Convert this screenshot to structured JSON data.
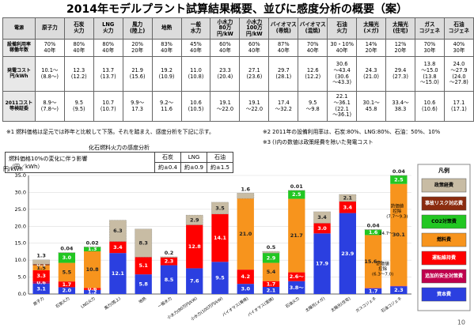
{
  "title": "2014年モデルプラント試算結果概要、並びに感度分析の概要（案）",
  "page_number": "10",
  "table": {
    "header": [
      "電源",
      "原子力",
      "石炭\n火力",
      "LNG\n火力",
      "風力\n(陸上)",
      "地熱",
      "一般\n水力",
      "小水力\n80万円/kW",
      "小水力\n100万円/kW",
      "バイオマス\n(専焼)",
      "バイオマス\n(混焼)",
      "石油\n火力",
      "太陽光\n(メガ)",
      "太陽光\n(住宅)",
      "ガス\nコジェネ",
      "石油\nコジェネ"
    ],
    "rows": [
      [
        "設備利用率\n稼働年数",
        "70%\n40年",
        "80%\n40年",
        "80%\n40年",
        "20%\n20年",
        "83%\n40年",
        "45%\n40年",
        "60%\n40年",
        "60%\n40年",
        "87%\n40年",
        "70%\n40年",
        "30・10%\n40年",
        "14%\n20年",
        "12%\n20年",
        "70%\n30年",
        "40%\n30年"
      ],
      [
        "発電コスト\n円/kWh",
        "10.1〜\n(8.8〜)",
        "12.3\n(12.2)",
        "13.7\n(13.7)",
        "21.9\n(15.6)",
        "19.2\n(10.9)",
        "11.0\n(10.8)",
        "23.3\n(20.4)",
        "27.1\n(23.6)",
        "29.7\n(28.1)",
        "12.6\n(12.2)",
        "30.6\n〜43.4\n(30.6\n〜43.3)",
        "24.3\n(21.0)",
        "29.4\n(27.3)",
        "13.8\n〜15.0\n(13.8\n〜15.0)",
        "24.0\n〜27.9\n(24.0\n〜27.8)"
      ],
      [
        "2011コスト\n等検証委",
        "8.9〜\n(7.8〜)",
        "9.5\n(9.5)",
        "10.7\n(10.7)",
        "9.9〜\n17.3",
        "9.2〜\n11.6",
        "10.6\n(10.5)",
        "19.1\n〜22.0",
        "19.1\n〜22.0",
        "17.4\n〜32.2",
        "9.5\n〜9.8",
        "22.1\n〜36.1\n(22.1\n〜36.1)",
        "30.1〜\n45.8",
        "33.4〜\n38.3",
        "10.6\n(10.6)",
        "17.1\n(17.1)"
      ]
    ]
  },
  "notes": [
    "※1 燃料価格は足元では昨年と比較して下落。それを踏まえ、感度分析を下記に示す。",
    "※2 2011年の設備利用率は、石炭:80%、LNG:80%、石油：50%、10%",
    "※3 ()内の数値は政策経費を除いた発電コスト"
  ],
  "sensitivity": {
    "title": "化石燃料火力の感度分析",
    "row_label": "燃料価格10%の変化に伴う影響\n（円／kWh）",
    "columns": [
      "石炭",
      "LNG",
      "石油"
    ],
    "values": [
      "約±0.4",
      "約±0.9",
      "約±1.5"
    ]
  },
  "chart_data": {
    "type": "stacked_bar",
    "y_label": "円/kWh",
    "legend_title": "凡例",
    "categories": [
      "原子力",
      "石炭火力",
      "LNG火力",
      "風力(陸上)",
      "地熱",
      "一般水力",
      "小水力(80万円/kW)",
      "小水力(100万円/kW)",
      "バイオマス(専焼)",
      "バイオマス(混焼)",
      "石油火力",
      "太陽光(メガ)",
      "太陽光(住宅)",
      "ガスコジェネ",
      "石油コジェネ"
    ],
    "ylim": [
      0,
      35
    ],
    "yticks": [
      {
        "value": 0,
        "label": "0.0"
      },
      {
        "value": 5,
        "label": "5.0"
      },
      {
        "value": 10,
        "label": "10.0"
      },
      {
        "value": 15,
        "label": "15.0"
      },
      {
        "value": 20,
        "label": "20.0"
      },
      {
        "value": 25,
        "label": "25.0"
      },
      {
        "value": 30,
        "label": "30.0"
      },
      {
        "value": 35,
        "label": "35.0"
      }
    ],
    "series": [
      {
        "name": "資本費",
        "color": "#2b3fe0",
        "values": [
          3.1,
          2.0,
          1.2,
          12.1,
          5.8,
          8.5,
          7.6,
          9.5,
          3.0,
          2.1,
          3.8,
          17.9,
          23.9,
          1.7,
          2.3
        ],
        "value_labels": [
          "3.1",
          "2.0",
          "1.2",
          "12.1",
          "5.8",
          "8.5",
          "7.6",
          "9.5",
          "3.0",
          "2.1",
          "3.8〜",
          "17.9",
          "23.9",
          "1.7",
          "2.3"
        ]
      },
      {
        "name": "追加的安全対策費",
        "color": "#c0004d",
        "values": [
          0.6,
          null,
          null,
          null,
          null,
          null,
          null,
          null,
          null,
          null,
          null,
          null,
          null,
          null,
          null
        ],
        "value_labels": [
          "0.6",
          null,
          null,
          null,
          null,
          null,
          null,
          null,
          null,
          null,
          null,
          null,
          null,
          null,
          null
        ]
      },
      {
        "name": "運転維持費",
        "color": "#ff0000",
        "values": [
          3.3,
          1.7,
          0.6,
          3.4,
          5.1,
          2.3,
          12.8,
          14.1,
          4.2,
          1.7,
          2.6,
          3.0,
          3.4,
          0.1,
          0.1
        ],
        "value_labels": [
          "3.3",
          "1.7",
          "0.6",
          "3.4",
          "5.1",
          "2.3",
          "12.8",
          "14.1",
          "4.2",
          "1.7",
          "2.6〜",
          "3.0",
          "3.4",
          null,
          null
        ]
      },
      {
        "name": "燃料費",
        "color": "#f7941d",
        "values": [
          1.5,
          5.5,
          10.8,
          null,
          null,
          null,
          null,
          null,
          21.0,
          5.4,
          21.7,
          null,
          null,
          15.6,
          30.1
        ],
        "value_labels": [
          "1.5",
          "5.5",
          "10.8",
          null,
          null,
          null,
          null,
          null,
          "21.0",
          "5.4",
          "21.7",
          null,
          null,
          "15.6〜",
          "30.1"
        ]
      },
      {
        "name": "CO2対策費",
        "color": "#22c722",
        "values": [
          null,
          3.0,
          1.3,
          null,
          null,
          null,
          null,
          null,
          null,
          2.9,
          2.5,
          null,
          null,
          1.6,
          2.5
        ],
        "value_labels": [
          null,
          "3.0",
          "1.3",
          null,
          null,
          null,
          null,
          null,
          null,
          "2.9",
          "2.5",
          null,
          null,
          "1.6",
          "2.5"
        ]
      },
      {
        "name": "事故リスク対応費",
        "color": "#8b2c0f",
        "values": [
          0.3,
          null,
          null,
          null,
          null,
          null,
          null,
          null,
          null,
          null,
          null,
          null,
          null,
          null,
          null
        ],
        "value_labels": [
          "0.3",
          null,
          null,
          null,
          null,
          null,
          null,
          null,
          null,
          null,
          null,
          null,
          null,
          null,
          null
        ]
      },
      {
        "name": "政策経費",
        "color": "#c8bca4",
        "values": [
          1.3,
          0.04,
          0.02,
          6.3,
          8.3,
          0.2,
          2.9,
          3.5,
          1.6,
          0.5,
          0.01,
          3.4,
          2.1,
          0.04,
          0.04
        ],
        "value_labels": [
          "1.3",
          "0.04",
          "0.02",
          "6.3",
          "8.3",
          "0.2",
          "2.9",
          "3.5",
          "1.6",
          "0.5",
          "0.01",
          "3.4",
          "2.1",
          "0.04",
          "0.04"
        ]
      }
    ],
    "annotations": [
      "熱価値\n控除\n(6.3〜7.0)",
      "熱価値\n控除\n(7.7〜9.3)",
      "24.7〜"
    ]
  }
}
